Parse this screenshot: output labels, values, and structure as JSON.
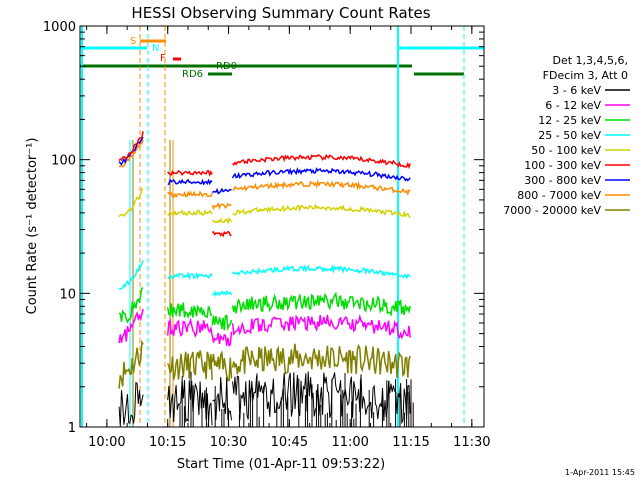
{
  "chart_data": {
    "type": "line",
    "title": "HESSI Observing Summary Count Rates",
    "xlabel": "Start Time (01-Apr-11 09:53:22)",
    "ylabel": "Count Rate (s⁻¹ detector⁻¹)",
    "y_scale": "log",
    "ylim": [
      1,
      1000
    ],
    "xlim": [
      "09:53:22",
      "11:33"
    ],
    "x_ticks": [
      "10:00",
      "10:15",
      "10:30",
      "10:45",
      "11:00",
      "11:15",
      "11:30"
    ],
    "y_ticks": [
      "1",
      "10",
      "100",
      "1000"
    ],
    "legend_header": [
      "Det 1,3,4,5,6,",
      "FDecim 3, Att 0"
    ],
    "legend_placement": "right",
    "timestamp": "1-Apr-2011 15:45",
    "grid": false,
    "segments": [
      [
        "10:03",
        "10:09"
      ],
      [
        "10:15",
        "10:26"
      ],
      [
        "10:26",
        "10:31"
      ],
      [
        "10:31",
        "11:15"
      ]
    ],
    "series": [
      {
        "name": "3 - 6 keV",
        "color": "#000000",
        "values": [
          1.3,
          1.5,
          1.6,
          1.6
        ]
      },
      {
        "name": "6 - 12 keV",
        "color": "#ff00ff",
        "values": [
          4.7,
          5.5,
          4.5,
          5.5
        ]
      },
      {
        "name": "12 - 25 keV",
        "color": "#00dd00",
        "values": [
          6.5,
          7.5,
          6.0,
          8.0
        ]
      },
      {
        "name": "25 - 50 keV",
        "color": "#00ffff",
        "values": [
          11,
          13.5,
          10,
          14
        ]
      },
      {
        "name": "50 - 100 keV",
        "color": "#d2d200",
        "values": [
          38,
          40,
          35,
          40
        ]
      },
      {
        "name": "100 - 300 keV",
        "color": "#ff0000",
        "values": [
          100,
          80,
          28,
          95
        ]
      },
      {
        "name": "300 - 800 keV",
        "color": "#0000ff",
        "values": [
          95,
          68,
          58,
          75
        ]
      },
      {
        "name": "800 - 7000 keV",
        "color": "#ff8c00",
        "values": [
          90,
          55,
          45,
          60
        ]
      },
      {
        "name": "7000 - 20000 keV",
        "color": "#808000",
        "values": [
          2.5,
          2.9,
          2.8,
          3.0
        ]
      }
    ],
    "flag_labels": {
      "S": "S",
      "N": "N",
      "F": "F",
      "RD0": "RD0",
      "RD6": "RD6"
    }
  }
}
